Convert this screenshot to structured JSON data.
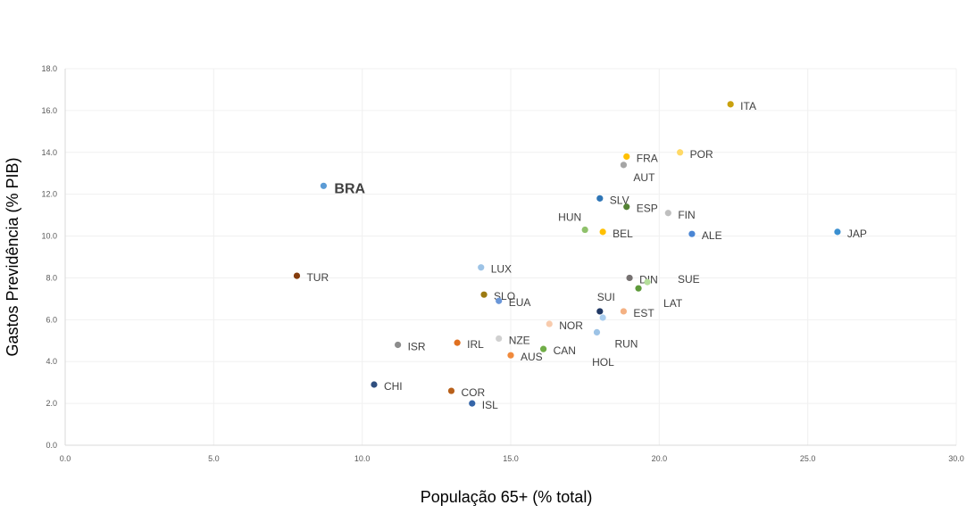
{
  "chart_data": {
    "type": "scatter",
    "title": "",
    "xlabel": "População  65+  (% total)",
    "ylabel": "Gastos Previdência (% PIB)",
    "xlim": [
      0,
      30
    ],
    "ylim": [
      0,
      18
    ],
    "xticks": [
      "0.0",
      "5.0",
      "10.0",
      "15.0",
      "20.0",
      "25.0",
      "30.0"
    ],
    "yticks": [
      "0.0",
      "2.0",
      "4.0",
      "6.0",
      "8.0",
      "10.0",
      "12.0",
      "14.0",
      "16.0",
      "18.0"
    ],
    "grid": true,
    "legend": "none",
    "points": [
      {
        "label": "BRA",
        "x": 8.7,
        "y": 12.4,
        "color": "#5b9bd5",
        "highlight": true
      },
      {
        "label": "TUR",
        "x": 7.8,
        "y": 8.1,
        "color": "#843c0c"
      },
      {
        "label": "ITA",
        "x": 22.4,
        "y": 16.3,
        "color": "#c9a10e"
      },
      {
        "label": "POR",
        "x": 20.7,
        "y": 14.0,
        "color": "#ffd966"
      },
      {
        "label": "FRA",
        "x": 18.9,
        "y": 13.8,
        "color": "#ffc000"
      },
      {
        "label": "AUT",
        "x": 18.8,
        "y": 13.4,
        "color": "#a5a5a5"
      },
      {
        "label": "SLV",
        "x": 18.0,
        "y": 11.8,
        "color": "#2e75b6"
      },
      {
        "label": "ESP",
        "x": 18.9,
        "y": 11.4,
        "color": "#548235"
      },
      {
        "label": "FIN",
        "x": 20.3,
        "y": 11.1,
        "color": "#bfbfbf"
      },
      {
        "label": "HUN",
        "x": 17.5,
        "y": 10.3,
        "color": "#8fc16b"
      },
      {
        "label": "BEL",
        "x": 18.1,
        "y": 10.2,
        "color": "#ffc000"
      },
      {
        "label": "ALE",
        "x": 21.1,
        "y": 10.1,
        "color": "#4a86d4"
      },
      {
        "label": "JAP",
        "x": 26.0,
        "y": 10.2,
        "color": "#3a8fd0"
      },
      {
        "label": "LUX",
        "x": 14.0,
        "y": 8.5,
        "color": "#9dc3e6"
      },
      {
        "label": "DIN",
        "x": 19.0,
        "y": 8.0,
        "color": "#767171"
      },
      {
        "label": "SUE",
        "x": 19.6,
        "y": 7.8,
        "color": "#b4de9a"
      },
      {
        "label": "LAT",
        "x": 19.3,
        "y": 7.5,
        "color": "#5e9a3a"
      },
      {
        "label": "SLO",
        "x": 14.1,
        "y": 7.2,
        "color": "#9c7a12"
      },
      {
        "label": "EUA",
        "x": 14.6,
        "y": 6.9,
        "color": "#6a96d8"
      },
      {
        "label": "SUI",
        "x": 18.0,
        "y": 6.4,
        "color": "#203864"
      },
      {
        "label": "EST",
        "x": 18.8,
        "y": 6.4,
        "color": "#f4b183"
      },
      {
        "label": "HOL",
        "x": 18.1,
        "y": 6.1,
        "color": "#a9cdee"
      },
      {
        "label": "NOR",
        "x": 16.3,
        "y": 5.8,
        "color": "#f8cbad"
      },
      {
        "label": "RUN",
        "x": 17.9,
        "y": 5.4,
        "color": "#9dc3e6"
      },
      {
        "label": "NZE",
        "x": 14.6,
        "y": 5.1,
        "color": "#d0d0d0"
      },
      {
        "label": "IRL",
        "x": 13.2,
        "y": 4.9,
        "color": "#e07020"
      },
      {
        "label": "ISR",
        "x": 11.2,
        "y": 4.8,
        "color": "#8c8c8c"
      },
      {
        "label": "CAN",
        "x": 16.1,
        "y": 4.6,
        "color": "#70ad47"
      },
      {
        "label": "AUS",
        "x": 15.0,
        "y": 4.3,
        "color": "#f08a3c"
      },
      {
        "label": "CHI",
        "x": 10.4,
        "y": 2.9,
        "color": "#2f4f7f"
      },
      {
        "label": "COR",
        "x": 13.0,
        "y": 2.6,
        "color": "#b8601a"
      },
      {
        "label": "ISL",
        "x": 13.7,
        "y": 2.0,
        "color": "#3565a8"
      }
    ]
  }
}
